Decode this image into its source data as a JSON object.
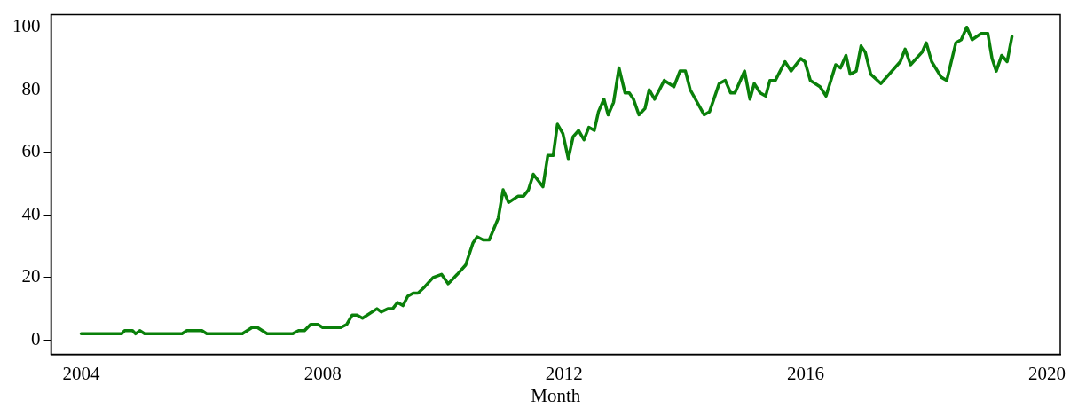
{
  "chart_data": {
    "type": "line",
    "xlabel": "Month",
    "xlim": [
      2003.5,
      2020.22
    ],
    "xticks": [
      2004,
      2008,
      2012,
      2016,
      2020
    ],
    "ylim": [
      -4.6,
      104
    ],
    "yticks": [
      0,
      20,
      40,
      60,
      80,
      100
    ],
    "grid": false,
    "legend": false,
    "marker": "none",
    "line_style": "solid",
    "series": [
      {
        "color": "#0a800a",
        "x": [
          2004,
          2004.67,
          2004.72,
          2004.85,
          2004.9,
          2004.97,
          2005.05,
          2005.67,
          2005.75,
          2006,
          2006.08,
          2006.67,
          2006.75,
          2006.83,
          2006.92,
          2007.08,
          2007.5,
          2007.6,
          2007.7,
          2007.8,
          2007.92,
          2008,
          2008.3,
          2008.4,
          2008.49,
          2008.57,
          2008.66,
          2008.9,
          2008.97,
          2009.08,
          2009.16,
          2009.24,
          2009.33,
          2009.41,
          2009.5,
          2009.58,
          2009.69,
          2009.83,
          2009.97,
          2010.08,
          2010.23,
          2010.37,
          2010.49,
          2010.56,
          2010.66,
          2010.76,
          2010.91,
          2010.99,
          2011.08,
          2011.24,
          2011.33,
          2011.41,
          2011.49,
          2011.65,
          2011.73,
          2011.82,
          2011.89,
          2011.98,
          2012.07,
          2012.15,
          2012.24,
          2012.33,
          2012.41,
          2012.5,
          2012.57,
          2012.66,
          2012.73,
          2012.82,
          2012.91,
          2013.01,
          2013.08,
          2013.15,
          2013.24,
          2013.34,
          2013.41,
          2013.5,
          2013.66,
          2013.82,
          2013.92,
          2014.01,
          2014.09,
          2014.32,
          2014.41,
          2014.57,
          2014.67,
          2014.76,
          2014.83,
          2014.99,
          2015.08,
          2015.15,
          2015.25,
          2015.34,
          2015.41,
          2015.5,
          2015.66,
          2015.76,
          2015.92,
          2015.99,
          2016.08,
          2016.24,
          2016.34,
          2016.5,
          2016.58,
          2016.67,
          2016.74,
          2016.84,
          2016.92,
          2016.99,
          2017.08,
          2017.25,
          2017.57,
          2017.65,
          2017.74,
          2017.93,
          2018,
          2018.09,
          2018.25,
          2018.34,
          2018.49,
          2018.58,
          2018.67,
          2018.76,
          2018.91,
          2019.02,
          2019.09,
          2019.16,
          2019.25,
          2019.34,
          2019.42
        ],
        "values": [
          2,
          2,
          3,
          3,
          2,
          3,
          2,
          2,
          3,
          3,
          2,
          2,
          3,
          4,
          4,
          2,
          2,
          3,
          3,
          5,
          5,
          4,
          4,
          5,
          8,
          8,
          7,
          10,
          9,
          10,
          10,
          12,
          11,
          14,
          15,
          15,
          17,
          20,
          21,
          18,
          21,
          24,
          31,
          33,
          32,
          32,
          39,
          48,
          44,
          46,
          46,
          48,
          53,
          49,
          59,
          59,
          69,
          66,
          58,
          65,
          67,
          64,
          68,
          67,
          73,
          77,
          72,
          76,
          87,
          79,
          79,
          77,
          72,
          74,
          80,
          77,
          83,
          81,
          86,
          86,
          80,
          72,
          73,
          82,
          83,
          79,
          79,
          86,
          77,
          82,
          79,
          78,
          83,
          83,
          89,
          86,
          90,
          89,
          83,
          81,
          78,
          88,
          87,
          91,
          85,
          86,
          94,
          92,
          85,
          82,
          89,
          93,
          88,
          92,
          95,
          89,
          84,
          83,
          95,
          96,
          100,
          96,
          98,
          98,
          90,
          86,
          91,
          89,
          97
        ]
      }
    ]
  }
}
